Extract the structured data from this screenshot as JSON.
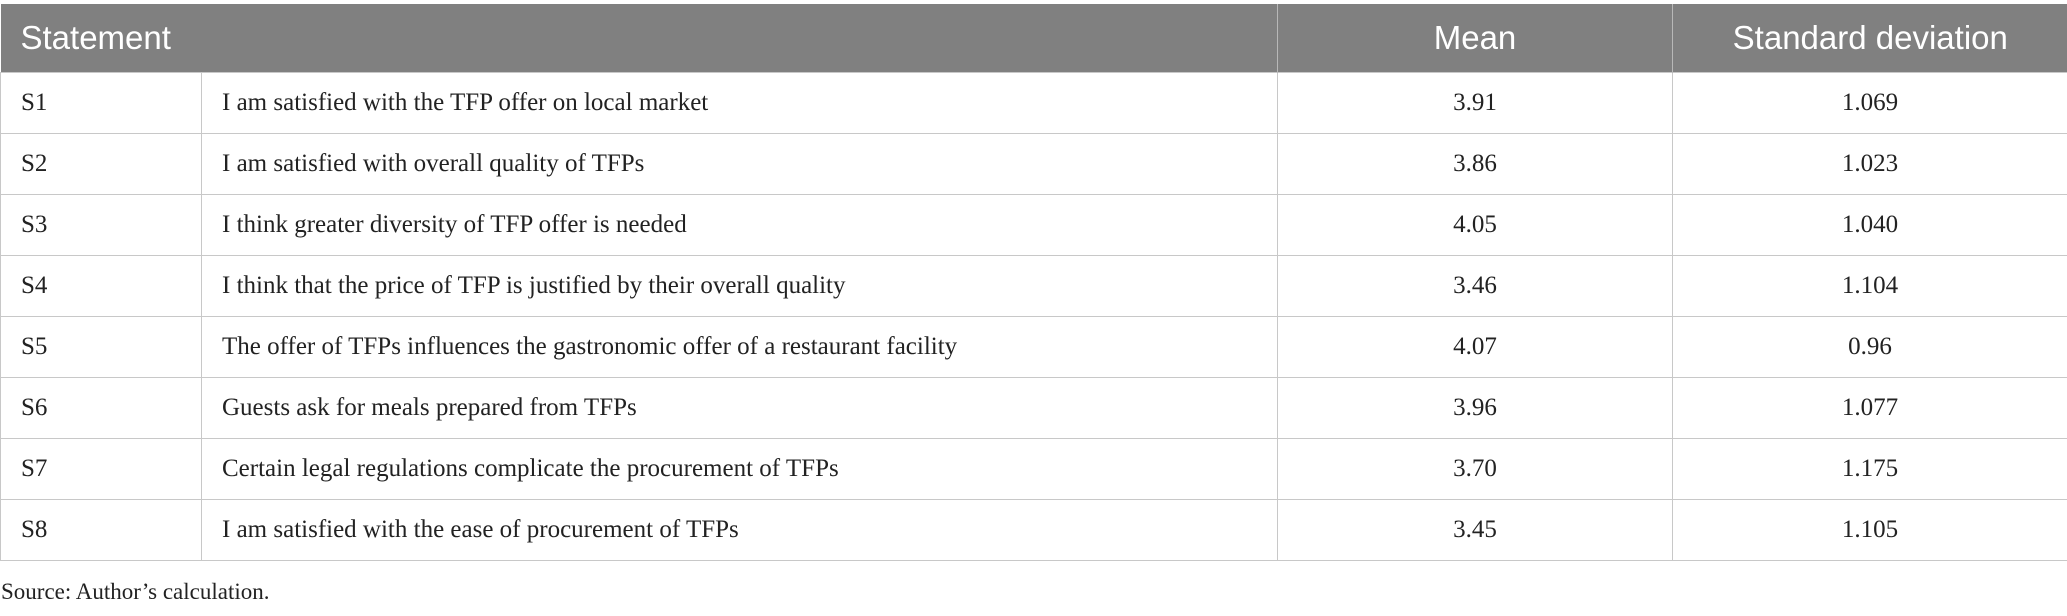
{
  "table": {
    "headers": {
      "statement": "Statement",
      "mean": "Mean",
      "std": "Standard deviation"
    },
    "rows": [
      {
        "id": "S1",
        "text": "I am satisfied with the TFP offer on local market",
        "mean": "3.91",
        "std": "1.069"
      },
      {
        "id": "S2",
        "text": "I am satisfied with overall quality of TFPs",
        "mean": "3.86",
        "std": "1.023"
      },
      {
        "id": "S3",
        "text": "I think greater diversity of TFP offer is needed",
        "mean": "4.05",
        "std": "1.040"
      },
      {
        "id": "S4",
        "text": "I think that the price of TFP is justified by their overall quality",
        "mean": "3.46",
        "std": "1.104"
      },
      {
        "id": "S5",
        "text": "The offer of TFPs influences the gastronomic offer of a restaurant facility",
        "mean": "4.07",
        "std": "0.96"
      },
      {
        "id": "S6",
        "text": "Guests ask for meals prepared from TFPs",
        "mean": "3.96",
        "std": "1.077"
      },
      {
        "id": "S7",
        "text": "Certain legal regulations complicate the procurement of TFPs",
        "mean": "3.70",
        "std": "1.175"
      },
      {
        "id": "S8",
        "text": "I am satisfied with the ease of procurement of TFPs",
        "mean": "3.45",
        "std": "1.105"
      }
    ]
  },
  "source_note": "Source: Author’s calculation.",
  "colors": {
    "header_bg": "#808080",
    "header_text": "#ffffff",
    "grid_line": "#c8c8c8"
  }
}
